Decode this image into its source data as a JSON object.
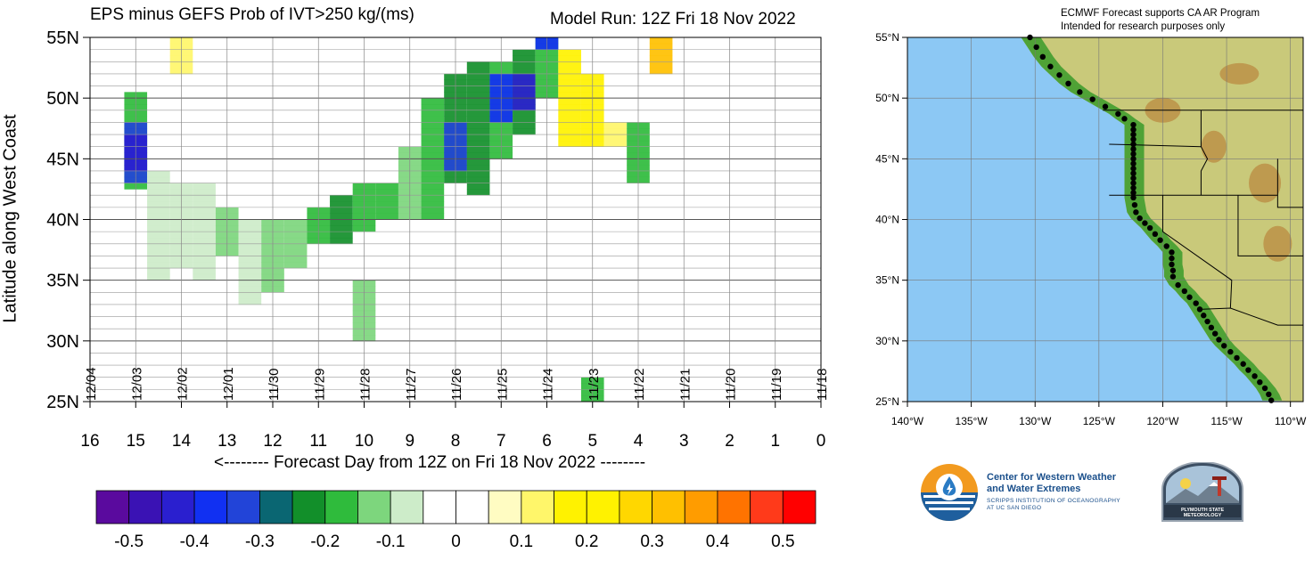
{
  "left_title": "EPS minus GEFS Prob of IVT>250 kg/(ms)",
  "model_run": "Model Run: 12Z Fri 18 Nov 2022",
  "right_note_1": "ECMWF Forecast supports CA AR Program",
  "right_note_2": "Intended for research purposes only",
  "logo_cw3e_title_1": "Center for Western Weather",
  "logo_cw3e_title_2": "and Water Extremes",
  "logo_cw3e_sub_1": "SCRIPPS INSTITUTION OF OCEANOGRAPHY",
  "logo_cw3e_sub_2": "AT UC SAN DIEGO",
  "logo_psu_text": "PLYMOUTH STATE METEOROLOGY",
  "colors": {
    "ocean": "#8cc8f4",
    "land_low": "#3a9b2a",
    "land_mid": "#c9c97a",
    "land_high": "#b9863d"
  },
  "chart_data": [
    {
      "type": "heatmap",
      "title": "EPS minus GEFS Prob of IVT>250 kg/(ms)",
      "xlabel": "<-------- Forecast Day from 12Z on Fri 18 Nov 2022 --------",
      "ylabel": "Latitude along West Coast",
      "x_ticks": [
        "16",
        "15",
        "14",
        "13",
        "12",
        "11",
        "10",
        "9",
        "8",
        "7",
        "6",
        "5",
        "4",
        "3",
        "2",
        "1",
        "0"
      ],
      "xlim": [
        16,
        0
      ],
      "y_ticks": [
        "25N",
        "30N",
        "35N",
        "40N",
        "45N",
        "50N",
        "55N"
      ],
      "ylim": [
        25,
        55
      ],
      "date_labels": [
        {
          "x": 16,
          "label": "12/04"
        },
        {
          "x": 15,
          "label": "12/03"
        },
        {
          "x": 14,
          "label": "12/02"
        },
        {
          "x": 13,
          "label": "12/01"
        },
        {
          "x": 12,
          "label": "11/30"
        },
        {
          "x": 11,
          "label": "11/29"
        },
        {
          "x": 10,
          "label": "11/28"
        },
        {
          "x": 9,
          "label": "11/27"
        },
        {
          "x": 8,
          "label": "11/26"
        },
        {
          "x": 7,
          "label": "11/25"
        },
        {
          "x": 6,
          "label": "11/24"
        },
        {
          "x": 5,
          "label": "11/23"
        },
        {
          "x": 4,
          "label": "11/22"
        },
        {
          "x": 3,
          "label": "11/21"
        },
        {
          "x": 2,
          "label": "11/20"
        },
        {
          "x": 1,
          "label": "11/19"
        },
        {
          "x": 0,
          "label": "11/18"
        }
      ],
      "levels": [
        -0.55,
        -0.5,
        -0.45,
        -0.4,
        -0.35,
        -0.3,
        -0.25,
        -0.2,
        -0.15,
        -0.1,
        -0.05,
        0,
        0.05,
        0.1,
        0.15,
        0.2,
        0.25,
        0.3,
        0.35,
        0.4,
        0.45,
        0.5,
        0.55
      ],
      "colorbar_colors": [
        "#5a0a9e",
        "#3a12b4",
        "#2a1fcf",
        "#1130f2",
        "#2244d8",
        "#0a6672",
        "#128f2a",
        "#2fbb3c",
        "#7dd67d",
        "#cdecc9",
        "#ffffff",
        "#ffffff",
        "#fffcc2",
        "#fff66a",
        "#fff200",
        "#fff200",
        "#ffd700",
        "#ffc000",
        "#ff9c00",
        "#ff7300",
        "#ff3a1a",
        "#ff0000"
      ],
      "colorbar_labels": [
        "-0.5",
        "-0.4",
        "-0.3",
        "-0.2",
        "-0.1",
        "0",
        "0.1",
        "0.2",
        "0.3",
        "0.4",
        "0.5"
      ],
      "cells": [
        {
          "x": 15,
          "lat": [
            42.5,
            50.5
          ],
          "v": -0.2
        },
        {
          "x": 15,
          "lat": [
            43,
            48
          ],
          "v": -0.35
        },
        {
          "x": 15,
          "lat": [
            44,
            47
          ],
          "v": -0.45
        },
        {
          "x": 14.5,
          "lat": [
            35,
            44
          ],
          "v": -0.08
        },
        {
          "x": 14,
          "lat": [
            36,
            43
          ],
          "v": -0.1
        },
        {
          "x": 13.5,
          "lat": [
            35,
            43
          ],
          "v": -0.1
        },
        {
          "x": 13,
          "lat": [
            37,
            41
          ],
          "v": -0.12
        },
        {
          "x": 12.5,
          "lat": [
            33,
            40
          ],
          "v": -0.1
        },
        {
          "x": 12,
          "lat": [
            34,
            40
          ],
          "v": -0.12
        },
        {
          "x": 11.5,
          "lat": [
            36,
            40
          ],
          "v": -0.15
        },
        {
          "x": 11,
          "lat": [
            38,
            41
          ],
          "v": -0.2
        },
        {
          "x": 10.5,
          "lat": [
            38,
            42
          ],
          "v": -0.22
        },
        {
          "x": 10,
          "lat": [
            30,
            35
          ],
          "v": -0.15
        },
        {
          "x": 10,
          "lat": [
            39,
            43
          ],
          "v": -0.18
        },
        {
          "x": 9.5,
          "lat": [
            40,
            43
          ],
          "v": -0.2
        },
        {
          "x": 9,
          "lat": [
            40,
            46
          ],
          "v": -0.15
        },
        {
          "x": 8.5,
          "lat": [
            40,
            50
          ],
          "v": -0.18
        },
        {
          "x": 8,
          "lat": [
            43,
            52
          ],
          "v": -0.22
        },
        {
          "x": 8,
          "lat": [
            44,
            48
          ],
          "v": -0.35
        },
        {
          "x": 7.5,
          "lat": [
            42,
            53
          ],
          "v": -0.22
        },
        {
          "x": 7,
          "lat": [
            45,
            53
          ],
          "v": -0.2
        },
        {
          "x": 7,
          "lat": [
            48,
            52
          ],
          "v": -0.4
        },
        {
          "x": 6.5,
          "lat": [
            47,
            54
          ],
          "v": -0.25
        },
        {
          "x": 6.5,
          "lat": [
            49,
            52
          ],
          "v": -0.42
        },
        {
          "x": 6,
          "lat": [
            50,
            55
          ],
          "v": -0.2
        },
        {
          "x": 6,
          "lat": [
            54,
            55
          ],
          "v": -0.38
        },
        {
          "x": 5.5,
          "lat": [
            46,
            54
          ],
          "v": 0.2
        },
        {
          "x": 5,
          "lat": [
            46,
            52
          ],
          "v": 0.15
        },
        {
          "x": 5,
          "lat": [
            25,
            27
          ],
          "v": -0.2
        },
        {
          "x": 4.5,
          "lat": [
            46,
            48
          ],
          "v": 0.12
        },
        {
          "x": 4,
          "lat": [
            43,
            48
          ],
          "v": -0.2
        },
        {
          "x": 14,
          "lat": [
            52,
            55
          ],
          "v": 0.1
        },
        {
          "x": 3.5,
          "lat": [
            52,
            55
          ],
          "v": 0.3
        }
      ]
    }
  ],
  "map": {
    "lat_ticks": [
      "25°N",
      "30°N",
      "35°N",
      "40°N",
      "45°N",
      "50°N",
      "55°N"
    ],
    "lon_ticks": [
      "140°W",
      "135°W",
      "130°W",
      "125°W",
      "120°W",
      "115°W",
      "110°W"
    ],
    "lon_range": [
      -140,
      -109
    ],
    "lat_range": [
      25,
      55
    ],
    "coast_points": [
      [
        -130.4,
        55
      ],
      [
        -129.9,
        54.2
      ],
      [
        -129.4,
        53.4
      ],
      [
        -128.8,
        52.6
      ],
      [
        -128.1,
        51.9
      ],
      [
        -127.4,
        51.2
      ],
      [
        -126.5,
        50.5
      ],
      [
        -125.5,
        49.9
      ],
      [
        -124.5,
        49.3
      ],
      [
        -123.5,
        48.7
      ],
      [
        -123,
        48.3
      ],
      [
        -122.3,
        47.8
      ],
      [
        -122.3,
        47.4
      ],
      [
        -122.3,
        47
      ],
      [
        -122.3,
        46.6
      ],
      [
        -122.3,
        46.2
      ],
      [
        -122.3,
        45.8
      ],
      [
        -122.3,
        45.4
      ],
      [
        -122.3,
        45
      ],
      [
        -122.3,
        44.6
      ],
      [
        -122.3,
        44.2
      ],
      [
        -122.3,
        43.8
      ],
      [
        -122.3,
        43.4
      ],
      [
        -122.3,
        43
      ],
      [
        -122.3,
        42.6
      ],
      [
        -122.3,
        42.2
      ],
      [
        -122.3,
        41.8
      ],
      [
        -122.2,
        41.2
      ],
      [
        -122.1,
        40.6
      ],
      [
        -121.8,
        40.1
      ],
      [
        -121.4,
        39.7
      ],
      [
        -121,
        39.3
      ],
      [
        -120.6,
        38.8
      ],
      [
        -120.2,
        38.3
      ],
      [
        -119.7,
        37.8
      ],
      [
        -119.3,
        37.3
      ],
      [
        -119.3,
        36.8
      ],
      [
        -119.3,
        36.3
      ],
      [
        -119.2,
        35.8
      ],
      [
        -119.2,
        35.3
      ],
      [
        -118.8,
        34.6
      ],
      [
        -118.3,
        34.1
      ],
      [
        -117.9,
        33.6
      ],
      [
        -117.4,
        33.1
      ],
      [
        -117.1,
        32.6
      ],
      [
        -116.8,
        32.1
      ],
      [
        -116.5,
        31.6
      ],
      [
        -116.2,
        31.1
      ],
      [
        -115.9,
        30.6
      ],
      [
        -115.6,
        30.1
      ],
      [
        -115.2,
        29.6
      ],
      [
        -114.7,
        29.1
      ],
      [
        -114.2,
        28.6
      ],
      [
        -113.7,
        28.1
      ],
      [
        -113.3,
        27.6
      ],
      [
        -112.8,
        27.1
      ],
      [
        -112.4,
        26.6
      ],
      [
        -112,
        26.1
      ],
      [
        -111.7,
        25.6
      ],
      [
        -111.5,
        25.1
      ]
    ]
  }
}
